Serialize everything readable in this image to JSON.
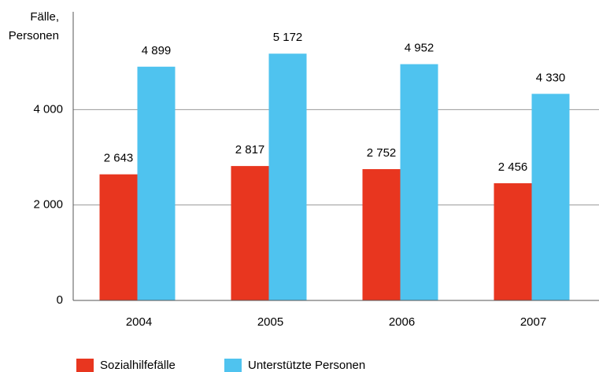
{
  "chart_data": {
    "type": "bar",
    "y_label": [
      "Fälle,",
      "Personen"
    ],
    "categories": [
      "2004",
      "2005",
      "2006",
      "2007"
    ],
    "series": [
      {
        "name": "Sozialhilfefälle",
        "color": "#e8361f",
        "values": [
          2643,
          2817,
          2752,
          2456
        ],
        "value_labels": [
          "2 643",
          "2 817",
          "2 752",
          "2 456"
        ]
      },
      {
        "name": "Unterstützte Personen",
        "color": "#4fc3ef",
        "values": [
          4899,
          5172,
          4952,
          4330
        ],
        "value_labels": [
          "4 899",
          "5 172",
          "4 952",
          "4 330"
        ]
      }
    ],
    "ylim": [
      0,
      6000
    ],
    "yticks": [
      0,
      {
        "value": 2000,
        "label": "2 000"
      },
      {
        "value": 4000,
        "label": "4 000"
      }
    ],
    "grid": true
  }
}
